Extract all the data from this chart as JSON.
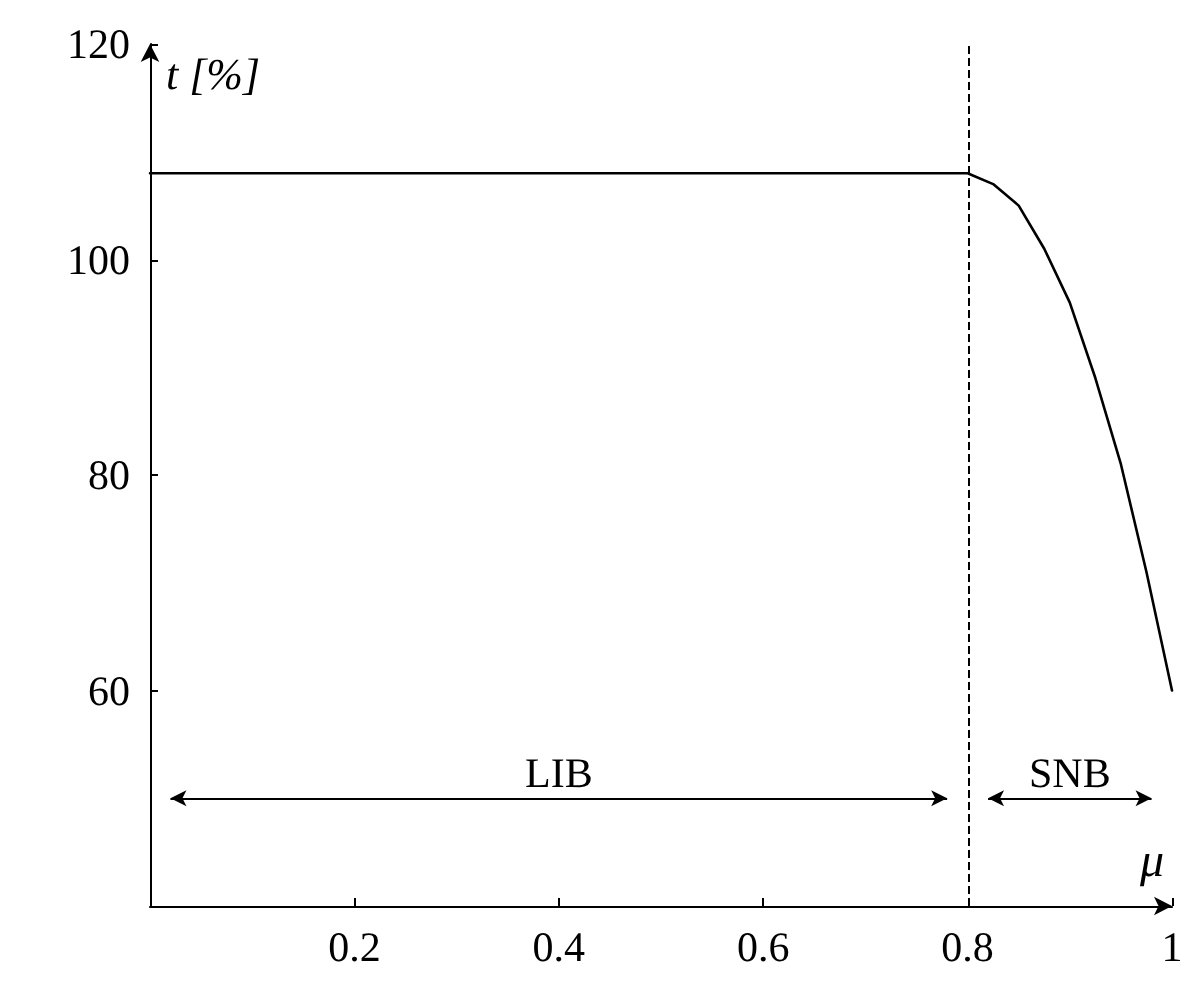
{
  "chart_data": {
    "type": "line",
    "xlabel": "μ",
    "ylabel": "t [%]",
    "x": [
      0,
      0.8,
      0.825,
      0.85,
      0.875,
      0.9,
      0.925,
      0.95,
      0.975,
      1
    ],
    "series": [
      {
        "color": "#000000",
        "values": [
          108,
          108,
          107,
          105,
          101,
          96,
          89,
          81,
          71,
          60
        ]
      }
    ],
    "xlim": [
      0,
      1
    ],
    "xticks": [
      0.2,
      0.4,
      0.6,
      0.8,
      1
    ],
    "ylim": [
      40,
      120
    ],
    "yticks": [
      60,
      80,
      100,
      120
    ],
    "ref_lines": [
      {
        "axis": "x",
        "value": 0.8,
        "color": "#000000",
        "line_style": "dashed"
      }
    ],
    "annotations": [
      "LIB",
      "SNB"
    ],
    "grid": false,
    "marker": "none",
    "line_style": "solid"
  }
}
